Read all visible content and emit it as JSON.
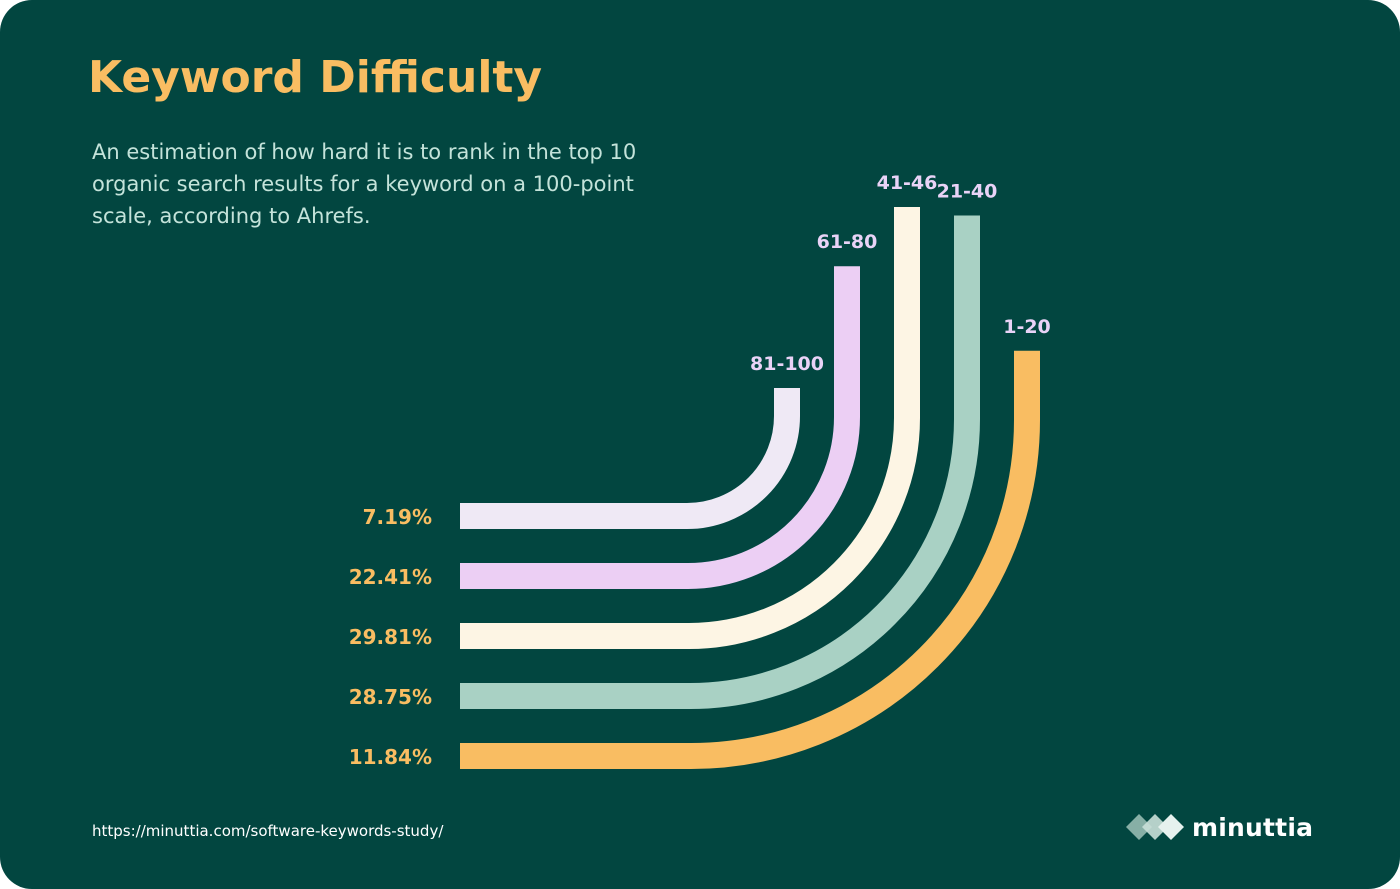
{
  "title": "Keyword Difficulty",
  "subtitle": "An estimation of how hard it is to rank in the top 10 organic search results for a keyword on a 100-point scale, according to Ahrefs.",
  "footer": {
    "url": "https://minuttia.com/software-keywords-study/",
    "brand": "minuttia"
  },
  "colors": {
    "background": "#024640",
    "accent": "#f9bd62",
    "subtitle": "#c4e3da",
    "range_label": "#e9d3f7"
  },
  "chart_data": {
    "type": "bar",
    "categories": [
      "81-100",
      "61-80",
      "41-46",
      "21-40",
      "1-20"
    ],
    "values": [
      7.19,
      22.41,
      29.81,
      28.75,
      11.84
    ],
    "value_labels": [
      "7.19%",
      "22.41%",
      "29.81%",
      "28.75%",
      "11.84%"
    ],
    "colors": [
      "#efe9f5",
      "#eccff4",
      "#fdf5e4",
      "#a9d1c4",
      "#f9bd62"
    ],
    "unit": "%"
  }
}
